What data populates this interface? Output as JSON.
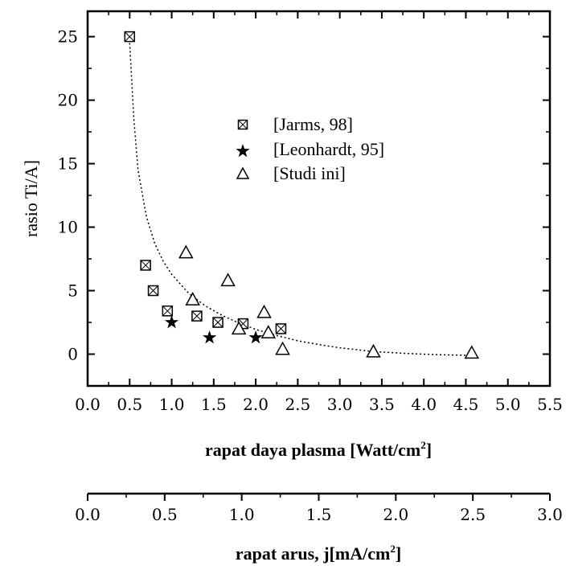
{
  "chart_data": {
    "type": "scatter",
    "title": "",
    "xlabel": "rapat daya plasma [Watt/cm",
    "xlabel_sup": "2",
    "xlabel_end": "]",
    "ylabel": "rasio Ti/A]",
    "xlim": [
      0.0,
      5.5
    ],
    "ylim": [
      -2.5,
      27
    ],
    "x_ticks": [
      "0.0",
      "0.5",
      "1.0",
      "1.5",
      "2.0",
      "2.5",
      "3.0",
      "3.5",
      "4.0",
      "4.5",
      "5.0",
      "5.5"
    ],
    "y_ticks": [
      "0",
      "5",
      "10",
      "15",
      "20",
      "25"
    ],
    "grid": false,
    "legend_position": "upper-middle",
    "series": [
      {
        "name": "[Jarms, 98]",
        "marker": "square-x",
        "points": [
          [
            0.5,
            25.0
          ],
          [
            0.69,
            7.0
          ],
          [
            0.78,
            5.0
          ],
          [
            0.95,
            3.4
          ],
          [
            1.3,
            3.0
          ],
          [
            1.55,
            2.5
          ],
          [
            1.85,
            2.4
          ],
          [
            2.3,
            2.0
          ]
        ]
      },
      {
        "name": "[Leonhardt, 95]",
        "marker": "star",
        "points": [
          [
            1.0,
            2.5
          ],
          [
            1.45,
            1.3
          ],
          [
            2.0,
            1.3
          ]
        ]
      },
      {
        "name": "[Studi ini]",
        "marker": "triangle",
        "points": [
          [
            1.17,
            8.0
          ],
          [
            1.25,
            4.3
          ],
          [
            1.67,
            5.8
          ],
          [
            1.8,
            2.0
          ],
          [
            2.1,
            3.3
          ],
          [
            2.15,
            1.7
          ],
          [
            2.32,
            0.4
          ],
          [
            3.4,
            0.2
          ],
          [
            4.57,
            0.1
          ]
        ]
      }
    ],
    "fit_curve": {
      "style": "dotted",
      "points": [
        [
          0.5,
          24.5
        ],
        [
          0.55,
          18.5
        ],
        [
          0.6,
          14.5
        ],
        [
          0.7,
          10.8
        ],
        [
          0.8,
          8.7
        ],
        [
          0.9,
          7.3
        ],
        [
          1.0,
          6.3
        ],
        [
          1.2,
          4.8
        ],
        [
          1.4,
          3.8
        ],
        [
          1.6,
          3.05
        ],
        [
          1.8,
          2.45
        ],
        [
          2.0,
          1.95
        ],
        [
          2.2,
          1.55
        ],
        [
          2.5,
          1.05
        ],
        [
          2.8,
          0.7
        ],
        [
          3.0,
          0.5
        ],
        [
          3.4,
          0.2
        ],
        [
          3.8,
          0.05
        ],
        [
          4.2,
          -0.05
        ],
        [
          4.6,
          -0.1
        ]
      ]
    },
    "secondary_axis": {
      "label": "rapat arus, j[mA/cm",
      "label_sup": "2",
      "label_end": "]",
      "xlim": [
        0.0,
        3.0
      ],
      "ticks": [
        "0.0",
        "0.5",
        "1.0",
        "1.5",
        "2.0",
        "2.5",
        "3.0"
      ]
    }
  }
}
